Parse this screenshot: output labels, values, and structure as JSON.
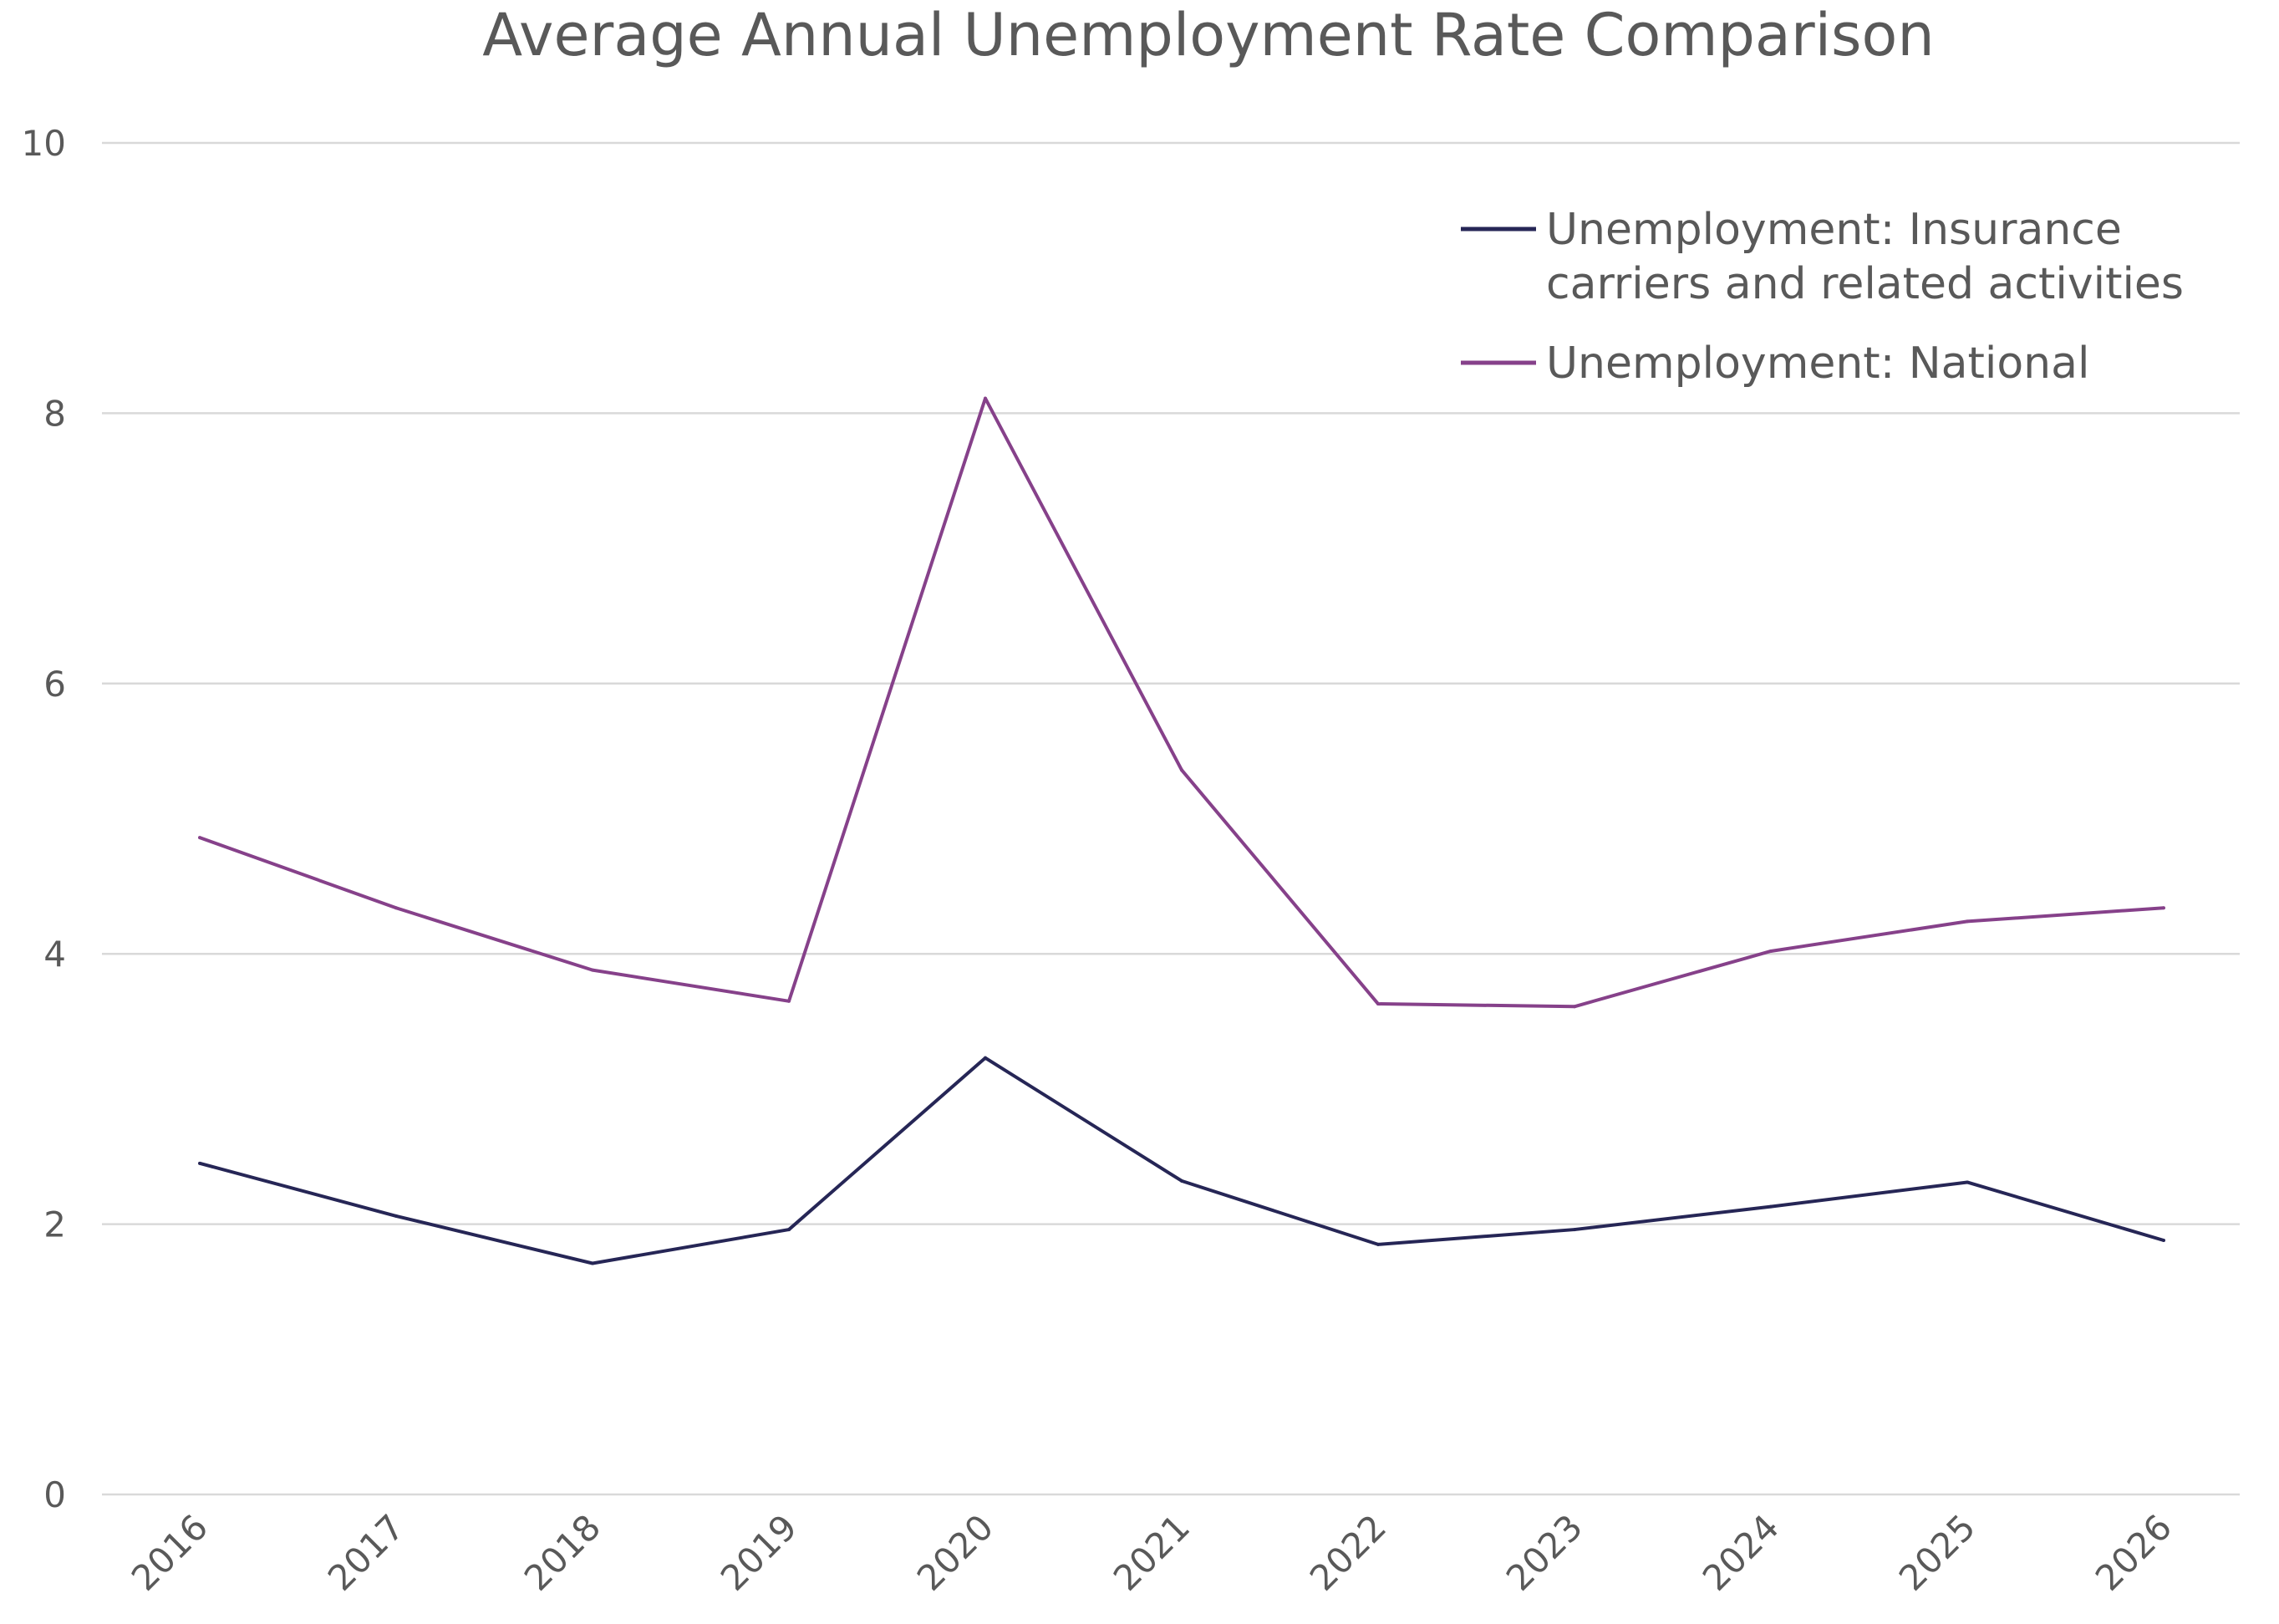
{
  "chart_data": {
    "type": "line",
    "title": "Average Annual Unemployment Rate Comparison",
    "xlabel": "",
    "ylabel": "",
    "categories": [
      "2016",
      "2017",
      "2018",
      "2019",
      "2020",
      "2021",
      "2022",
      "2023",
      "2024",
      "2025",
      "2026"
    ],
    "ylim": [
      0,
      10
    ],
    "yticks": [
      "0",
      "2",
      "4",
      "6",
      "8",
      "10"
    ],
    "grid": true,
    "legend_position": "top-right",
    "series": [
      {
        "name": "Unemployment: Insurance carriers and related activities",
        "legend_lines": [
          "Unemployment: Insurance",
          "carriers and related activities"
        ],
        "color": "#262656",
        "values": [
          2.45,
          2.06,
          1.71,
          1.96,
          3.23,
          2.32,
          1.85,
          1.96,
          2.13,
          2.31,
          1.88
        ]
      },
      {
        "name": "Unemployment: National",
        "legend_lines": [
          "Unemployment: National"
        ],
        "color": "#86418A",
        "values": [
          4.86,
          4.34,
          3.88,
          3.65,
          8.11,
          5.36,
          3.63,
          3.61,
          4.02,
          4.24,
          4.34
        ]
      }
    ]
  }
}
